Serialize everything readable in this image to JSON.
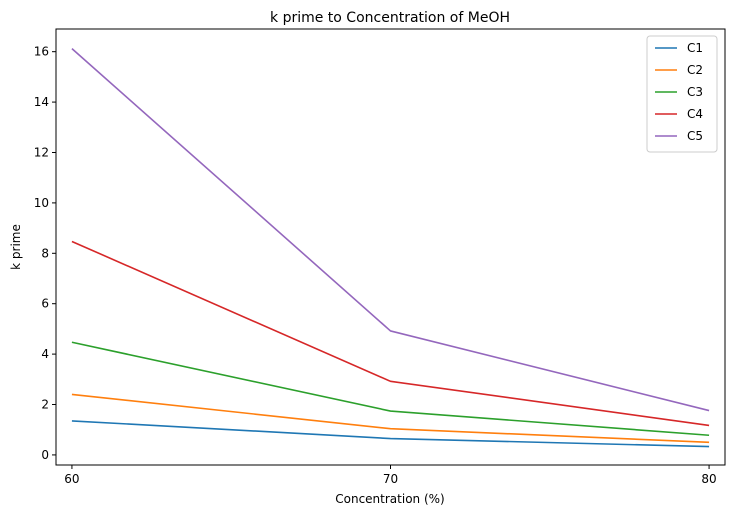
{
  "chart_data": {
    "type": "line",
    "title": "k prime to Concentration of MeOH",
    "xlabel": "Concentration (%)",
    "ylabel": "k prime",
    "x": [
      60,
      70,
      80
    ],
    "xticks": [
      "60",
      "70",
      "80"
    ],
    "xlim": [
      59.5,
      80.5
    ],
    "ylim": [
      -0.4,
      16.9
    ],
    "yticks": [
      "0",
      "2",
      "4",
      "6",
      "8",
      "10",
      "12",
      "14",
      "16"
    ],
    "grid": false,
    "legend_position": "top-right",
    "series": [
      {
        "name": "C1",
        "color": "#1f77b4",
        "values": [
          1.35,
          0.65,
          0.33
        ]
      },
      {
        "name": "C2",
        "color": "#ff7f0e",
        "values": [
          2.4,
          1.04,
          0.5
        ]
      },
      {
        "name": "C3",
        "color": "#2ca02c",
        "values": [
          4.47,
          1.74,
          0.78
        ]
      },
      {
        "name": "C4",
        "color": "#d62728",
        "values": [
          8.47,
          2.92,
          1.17
        ]
      },
      {
        "name": "C5",
        "color": "#9467bd",
        "values": [
          16.12,
          4.92,
          1.76
        ]
      }
    ]
  }
}
